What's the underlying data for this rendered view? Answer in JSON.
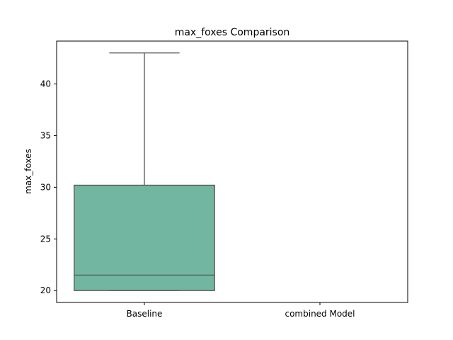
{
  "chart_data": {
    "type": "box",
    "title": "max_foxes Comparison",
    "xlabel": "",
    "ylabel": "max_foxes",
    "categories": [
      "Baseline",
      "combined Model"
    ],
    "ylim": [
      18.85,
      44.15
    ],
    "yticks": [
      20,
      25,
      30,
      35,
      40
    ],
    "grid": false,
    "colors": {
      "box_fill": "#72b6a1",
      "line": "#555555"
    },
    "boxes": [
      {
        "category": "Baseline",
        "min": 20,
        "q1": 20,
        "median": 21.5,
        "q3": 30.2,
        "max": 43
      },
      {
        "category": "combined Model",
        "min": null,
        "q1": null,
        "median": null,
        "q3": null,
        "max": null
      }
    ]
  }
}
